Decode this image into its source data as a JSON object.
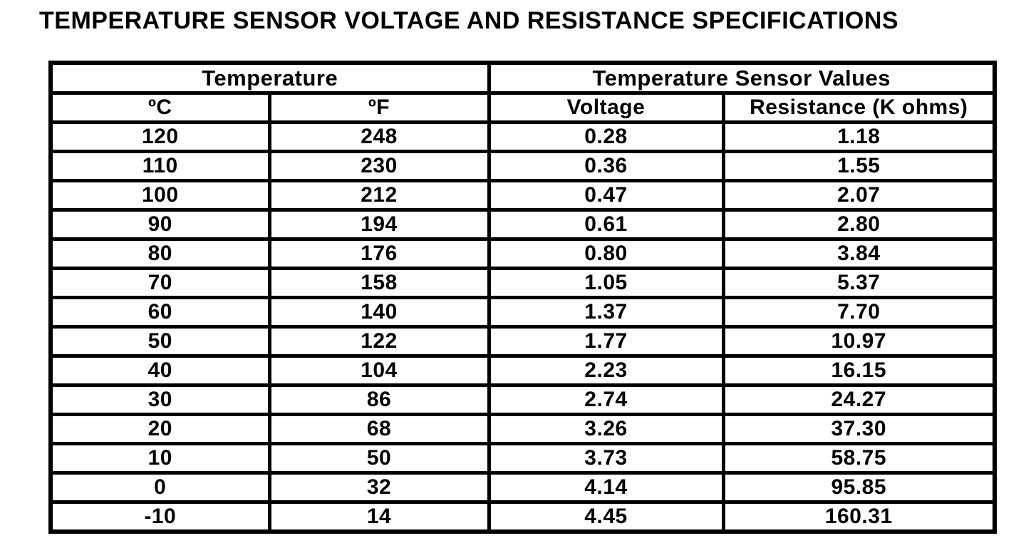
{
  "page": {
    "title": "TEMPERATURE SENSOR VOLTAGE AND RESISTANCE SPECIFICATIONS"
  },
  "colors": {
    "background": "#ffffff",
    "border": "#000000",
    "text": "#000000"
  },
  "table": {
    "group_headers": [
      {
        "label": "Temperature",
        "colspan": 2
      },
      {
        "label": "Temperature Sensor Values",
        "colspan": 2
      }
    ],
    "columns": [
      "ºC",
      "ºF",
      "Voltage",
      "Resistance (K ohms)"
    ],
    "rows": [
      [
        "120",
        "248",
        "0.28",
        "1.18"
      ],
      [
        "110",
        "230",
        "0.36",
        "1.55"
      ],
      [
        "100",
        "212",
        "0.47",
        "2.07"
      ],
      [
        "90",
        "194",
        "0.61",
        "2.80"
      ],
      [
        "80",
        "176",
        "0.80",
        "3.84"
      ],
      [
        "70",
        "158",
        "1.05",
        "5.37"
      ],
      [
        "60",
        "140",
        "1.37",
        "7.70"
      ],
      [
        "50",
        "122",
        "1.77",
        "10.97"
      ],
      [
        "40",
        "104",
        "2.23",
        "16.15"
      ],
      [
        "30",
        "86",
        "2.74",
        "24.27"
      ],
      [
        "20",
        "68",
        "3.26",
        "37.30"
      ],
      [
        "10",
        "50",
        "3.73",
        "58.75"
      ],
      [
        "0",
        "32",
        "4.14",
        "95.85"
      ],
      [
        "-10",
        "14",
        "4.45",
        "160.31"
      ]
    ]
  }
}
